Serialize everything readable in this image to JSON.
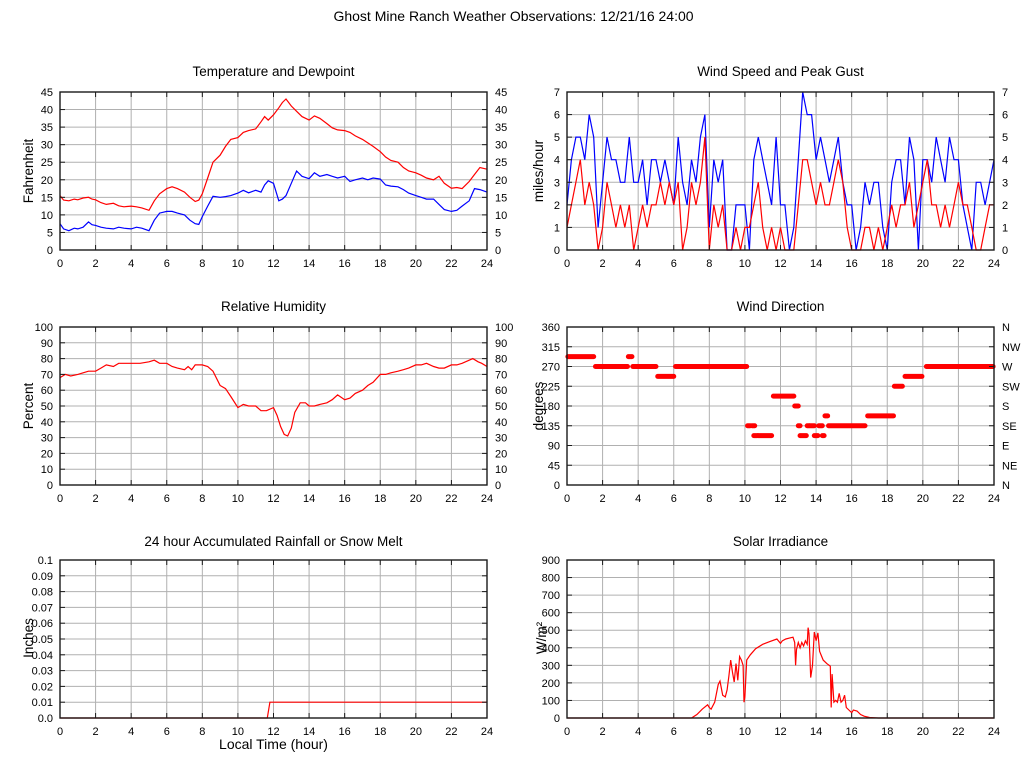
{
  "page_title": "Ghost Mine Ranch Weather Observations: 12/21/16 24:00",
  "colors": {
    "red_series": "#ff0000",
    "blue_series": "#0000ff",
    "grid_line": "#b0b0b0",
    "plot_border": "#1a1a1a",
    "background": "#ffffff",
    "text": "#000000"
  },
  "chart_data": [
    {
      "id": "temperature-dewpoint",
      "type": "line",
      "title": "Temperature and Dewpoint",
      "ylabel": "Fahrenheit",
      "xlabel": "",
      "xlim": [
        0,
        24
      ],
      "ylim": [
        0,
        45
      ],
      "xticks": [
        0,
        2,
        4,
        6,
        8,
        10,
        12,
        14,
        16,
        18,
        20,
        22,
        24
      ],
      "yticks": [
        0,
        5,
        10,
        15,
        20,
        25,
        30,
        35,
        40,
        45
      ],
      "right_labels": "same",
      "grid": true,
      "x": [
        0,
        0.2,
        0.5,
        0.8,
        1,
        1.3,
        1.6,
        1.8,
        2,
        2.3,
        2.6,
        3,
        3.3,
        3.6,
        4,
        4.3,
        4.6,
        5,
        5.3,
        5.6,
        6,
        6.3,
        6.6,
        7,
        7.3,
        7.6,
        7.8,
        8,
        8.3,
        8.6,
        9,
        9.3,
        9.6,
        10,
        10.3,
        10.6,
        11,
        11.3,
        11.5,
        11.7,
        12,
        12.3,
        12.5,
        12.7,
        13,
        13.3,
        13.6,
        14,
        14.3,
        14.6,
        15,
        15.3,
        15.6,
        16,
        16.3,
        16.6,
        17,
        17.3,
        17.6,
        18,
        18.3,
        18.6,
        19,
        19.3,
        19.6,
        20,
        20.3,
        20.6,
        21,
        21.3,
        21.6,
        22,
        22.3,
        22.6,
        23,
        23.3,
        23.6,
        24
      ],
      "series": [
        {
          "name": "temperature",
          "color": "#ff0000",
          "y": [
            15.5,
            14.2,
            14.0,
            14.5,
            14.3,
            14.8,
            15.0,
            14.5,
            14.3,
            13.5,
            13.0,
            13.3,
            12.6,
            12.3,
            12.5,
            12.3,
            12.0,
            11.3,
            14.0,
            16.0,
            17.5,
            18.0,
            17.5,
            16.5,
            15.0,
            13.8,
            14.2,
            16.0,
            20.5,
            25.0,
            27.0,
            29.5,
            31.5,
            32.0,
            33.5,
            34.0,
            34.5,
            36.5,
            38.0,
            37.0,
            38.5,
            40.5,
            42.0,
            43.0,
            41.0,
            39.5,
            38.0,
            37.0,
            38.2,
            37.5,
            36.0,
            34.8,
            34.2,
            34.0,
            33.5,
            32.5,
            31.5,
            30.5,
            29.5,
            28.0,
            26.5,
            25.5,
            25.0,
            23.5,
            22.5,
            22.0,
            21.3,
            20.5,
            20.0,
            21.0,
            19.0,
            17.6,
            17.8,
            17.5,
            19.5,
            21.5,
            23.5,
            23.0
          ]
        },
        {
          "name": "dewpoint",
          "color": "#0000ff",
          "y": [
            7.5,
            6.0,
            5.5,
            6.2,
            6.0,
            6.5,
            8.0,
            7.2,
            7.0,
            6.5,
            6.2,
            6.0,
            6.5,
            6.2,
            6.0,
            6.5,
            6.2,
            5.5,
            8.5,
            10.5,
            11.0,
            11.0,
            10.5,
            10.0,
            8.5,
            7.5,
            7.3,
            9.5,
            12.5,
            15.3,
            15.0,
            15.2,
            15.5,
            16.2,
            17.0,
            16.3,
            17.0,
            16.5,
            18.5,
            19.7,
            19.0,
            14.0,
            14.5,
            15.5,
            19.0,
            22.5,
            21.0,
            20.3,
            22.0,
            21.0,
            21.5,
            21.0,
            20.5,
            21.0,
            19.5,
            20.0,
            20.5,
            20.0,
            20.5,
            20.2,
            18.5,
            18.2,
            18.0,
            17.2,
            16.2,
            15.5,
            15.0,
            14.5,
            14.5,
            13.0,
            11.5,
            11.0,
            11.3,
            12.5,
            14.0,
            17.5,
            17.2,
            16.5
          ]
        }
      ]
    },
    {
      "id": "wind-speed-peak-gust",
      "type": "line",
      "title": "Wind Speed and Peak Gust",
      "ylabel": "miles/hour",
      "xlabel": "",
      "xlim": [
        0,
        24
      ],
      "ylim": [
        0,
        7
      ],
      "xticks": [
        0,
        2,
        4,
        6,
        8,
        10,
        12,
        14,
        16,
        18,
        20,
        22,
        24
      ],
      "yticks": [
        0,
        1,
        2,
        3,
        4,
        5,
        6,
        7
      ],
      "right_labels": "same",
      "grid": true,
      "x": [
        0,
        0.25,
        0.5,
        0.75,
        1,
        1.25,
        1.5,
        1.75,
        2,
        2.25,
        2.5,
        2.75,
        3,
        3.25,
        3.5,
        3.75,
        4,
        4.25,
        4.5,
        4.75,
        5,
        5.25,
        5.5,
        5.75,
        6,
        6.25,
        6.5,
        6.75,
        7,
        7.25,
        7.5,
        7.75,
        8,
        8.25,
        8.5,
        8.75,
        9,
        9.25,
        9.5,
        9.75,
        10,
        10.25,
        10.5,
        10.75,
        11,
        11.25,
        11.5,
        11.75,
        12,
        12.25,
        12.5,
        12.75,
        13,
        13.25,
        13.5,
        13.75,
        14,
        14.25,
        14.5,
        14.75,
        15,
        15.25,
        15.5,
        15.75,
        16,
        16.25,
        16.5,
        16.75,
        17,
        17.25,
        17.5,
        17.75,
        18,
        18.25,
        18.5,
        18.75,
        19,
        19.25,
        19.5,
        19.75,
        20,
        20.25,
        20.5,
        20.75,
        21,
        21.25,
        21.5,
        21.75,
        22,
        22.25,
        22.5,
        22.75,
        23,
        23.25,
        23.5,
        23.75,
        24
      ],
      "series": [
        {
          "name": "peak_gust",
          "color": "#0000ff",
          "y": [
            2,
            4,
            5,
            5,
            4,
            6,
            5,
            1,
            3,
            5,
            4,
            4,
            3,
            3,
            5,
            3,
            3,
            4,
            2,
            4,
            4,
            3,
            4,
            3,
            2,
            5,
            3,
            2,
            4,
            3,
            5,
            6,
            1,
            4,
            3,
            4,
            0,
            0,
            2,
            2,
            2,
            0,
            4,
            5,
            4,
            3,
            2,
            5,
            2,
            2,
            0,
            1,
            4,
            7,
            6,
            6,
            4,
            5,
            4,
            3,
            4,
            5,
            3,
            2,
            2,
            0,
            1,
            3,
            2,
            3,
            3,
            1,
            0,
            3,
            4,
            4,
            2,
            5,
            4,
            0,
            4,
            4,
            3,
            5,
            4,
            3,
            5,
            4,
            4,
            2,
            1,
            0,
            3,
            3,
            2,
            3,
            4
          ]
        },
        {
          "name": "wind_speed",
          "color": "#ff0000",
          "y": [
            1,
            2,
            3,
            4,
            2,
            3,
            2,
            0,
            1,
            3,
            2,
            1,
            2,
            1,
            2,
            0,
            1,
            2,
            1,
            2,
            2,
            3,
            2,
            3,
            2,
            3,
            0,
            1,
            3,
            2,
            3,
            5,
            0,
            2,
            1,
            2,
            0,
            0,
            1,
            0,
            1,
            1,
            2,
            3,
            1,
            0,
            1,
            0,
            1,
            0,
            0,
            0,
            2,
            4,
            4,
            3,
            2,
            3,
            2,
            2,
            3,
            4,
            3,
            1,
            0,
            0,
            0,
            1,
            1,
            0,
            1,
            0,
            1,
            2,
            1,
            2,
            2,
            3,
            1,
            2,
            3,
            4,
            2,
            2,
            1,
            2,
            1,
            2,
            3,
            2,
            2,
            1,
            0,
            0,
            1,
            2,
            2
          ]
        }
      ]
    },
    {
      "id": "relative-humidity",
      "type": "line",
      "title": "Relative Humidity",
      "ylabel": "Percent",
      "xlabel": "",
      "xlim": [
        0,
        24
      ],
      "ylim": [
        0,
        100
      ],
      "xticks": [
        0,
        2,
        4,
        6,
        8,
        10,
        12,
        14,
        16,
        18,
        20,
        22,
        24
      ],
      "yticks": [
        0,
        10,
        20,
        30,
        40,
        50,
        60,
        70,
        80,
        90,
        100
      ],
      "right_labels": "same",
      "grid": true,
      "x": [
        0,
        0.3,
        0.6,
        1,
        1.3,
        1.6,
        2,
        2.3,
        2.6,
        3,
        3.3,
        3.6,
        4,
        4.5,
        5,
        5.3,
        5.6,
        6,
        6.3,
        6.6,
        7,
        7.2,
        7.4,
        7.6,
        8,
        8.3,
        8.6,
        9,
        9.3,
        9.6,
        10,
        10.3,
        10.6,
        11,
        11.3,
        11.6,
        12,
        12.2,
        12.4,
        12.6,
        12.8,
        13,
        13.2,
        13.5,
        13.8,
        14,
        14.3,
        14.6,
        15,
        15.3,
        15.6,
        16,
        16.3,
        16.6,
        17,
        17.3,
        17.6,
        18,
        18.3,
        18.6,
        19,
        19.3,
        19.6,
        20,
        20.3,
        20.6,
        21,
        21.3,
        21.6,
        22,
        22.3,
        22.6,
        23,
        23.2,
        23.5,
        23.7,
        24
      ],
      "series": [
        {
          "name": "relative_humidity",
          "color": "#ff0000",
          "y": [
            68,
            70,
            69,
            70,
            71,
            72,
            72,
            74,
            76,
            75,
            77,
            77,
            77,
            77,
            78,
            79,
            77,
            77,
            75,
            74,
            73,
            75,
            73,
            76,
            76,
            75,
            72,
            63,
            61,
            56,
            49,
            51,
            50,
            50,
            47,
            47,
            49,
            44,
            37,
            32,
            31,
            36,
            46,
            52,
            52,
            50,
            50,
            51,
            52,
            54,
            57,
            54,
            55,
            58,
            60,
            63,
            65,
            70,
            70,
            71,
            72,
            73,
            74,
            76,
            76,
            77,
            75,
            74,
            74,
            76,
            76,
            77,
            79,
            80,
            78,
            77,
            75
          ]
        }
      ]
    },
    {
      "id": "wind-direction",
      "type": "segments",
      "title": "Wind Direction",
      "ylabel": "degrees",
      "xlabel": "",
      "xlim": [
        0,
        24
      ],
      "ylim": [
        0,
        360
      ],
      "xticks": [
        0,
        2,
        4,
        6,
        8,
        10,
        12,
        14,
        16,
        18,
        20,
        22,
        24
      ],
      "yticks": [
        0,
        45,
        90,
        135,
        180,
        225,
        270,
        315,
        360
      ],
      "right_labels": [
        "N",
        "NE",
        "E",
        "SE",
        "S",
        "SW",
        "W",
        "NW",
        "N"
      ],
      "grid": true,
      "color": "#ff0000",
      "segments": [
        [
          0.05,
          1.5,
          292.5
        ],
        [
          1.6,
          3.4,
          270
        ],
        [
          3.45,
          3.65,
          292.5
        ],
        [
          3.7,
          5.0,
          270
        ],
        [
          5.1,
          6.0,
          247.5
        ],
        [
          6.1,
          10.1,
          270
        ],
        [
          10.15,
          10.3,
          135
        ],
        [
          10.4,
          10.55,
          135
        ],
        [
          10.5,
          10.7,
          112.5
        ],
        [
          10.75,
          11.5,
          112.5
        ],
        [
          11.6,
          12.75,
          202.5
        ],
        [
          12.8,
          13.0,
          180
        ],
        [
          13.0,
          13.1,
          135
        ],
        [
          13.1,
          13.45,
          112.5
        ],
        [
          13.5,
          13.6,
          135
        ],
        [
          13.65,
          13.9,
          135
        ],
        [
          13.9,
          14.1,
          112.5
        ],
        [
          14.15,
          14.35,
          135
        ],
        [
          14.35,
          14.45,
          112.5
        ],
        [
          14.5,
          14.65,
          157.5
        ],
        [
          14.7,
          16.75,
          135
        ],
        [
          16.9,
          18.35,
          157.5
        ],
        [
          18.4,
          18.85,
          225
        ],
        [
          19.0,
          19.95,
          247.5
        ],
        [
          20.2,
          23.95,
          270
        ]
      ]
    },
    {
      "id": "accumulated-rainfall",
      "type": "line",
      "title": "24 hour Accumulated Rainfall or Snow Melt",
      "ylabel": "Inches",
      "xlabel": "Local Time (hour)",
      "xlim": [
        0,
        24
      ],
      "ylim": [
        0,
        0.1
      ],
      "xticks": [
        0,
        2,
        4,
        6,
        8,
        10,
        12,
        14,
        16,
        18,
        20,
        22,
        24
      ],
      "yticks": [
        0,
        0.01,
        0.02,
        0.03,
        0.04,
        0.05,
        0.06,
        0.07,
        0.08,
        0.09,
        0.1
      ],
      "ytick_labels": [
        "0.0",
        "0.01",
        "0.02",
        "0.03",
        "0.04",
        "0.05",
        "0.06",
        "0.07",
        "0.08",
        "0.09",
        "0.1"
      ],
      "right_labels": null,
      "grid": true,
      "x": [
        0,
        11.65,
        11.8,
        24
      ],
      "series": [
        {
          "name": "accumulated_rainfall",
          "color": "#ff0000",
          "y": [
            0,
            0,
            0.01,
            0.01
          ]
        }
      ]
    },
    {
      "id": "solar-irradiance",
      "type": "line",
      "title": "Solar Irradiance",
      "ylabel": "W/m²",
      "xlabel": "",
      "xlim": [
        0,
        24
      ],
      "ylim": [
        0,
        900
      ],
      "xticks": [
        0,
        2,
        4,
        6,
        8,
        10,
        12,
        14,
        16,
        18,
        20,
        22,
        24
      ],
      "yticks": [
        0,
        100,
        200,
        300,
        400,
        500,
        600,
        700,
        800,
        900
      ],
      "right_labels": null,
      "grid": true,
      "x": [
        0,
        7,
        7.3,
        7.6,
        7.9,
        8,
        8.1,
        8.3,
        8.5,
        8.6,
        8.75,
        8.9,
        9,
        9.1,
        9.2,
        9.3,
        9.4,
        9.5,
        9.6,
        9.7,
        9.8,
        9.9,
        9.95,
        10,
        10.1,
        10.3,
        10.6,
        11,
        11.4,
        11.8,
        12,
        12.1,
        12.3,
        12.5,
        12.7,
        12.8,
        12.85,
        12.9,
        13,
        13.1,
        13.2,
        13.3,
        13.4,
        13.5,
        13.55,
        13.6,
        13.7,
        13.8,
        13.9,
        14,
        14.1,
        14.2,
        14.4,
        14.6,
        14.8,
        14.85,
        14.9,
        15,
        15.1,
        15.2,
        15.3,
        15.4,
        15.5,
        15.6,
        15.7,
        15.9,
        16,
        16.1,
        16.3,
        16.5,
        16.7,
        17,
        17.5,
        24
      ],
      "series": [
        {
          "name": "solar_irradiance",
          "color": "#ff0000",
          "y": [
            0,
            0,
            20,
            50,
            75,
            60,
            50,
            90,
            190,
            210,
            130,
            120,
            160,
            240,
            330,
            260,
            205,
            310,
            215,
            350,
            330,
            300,
            90,
            120,
            330,
            360,
            395,
            420,
            435,
            450,
            425,
            440,
            450,
            455,
            460,
            430,
            300,
            390,
            430,
            400,
            430,
            410,
            440,
            420,
            515,
            480,
            230,
            300,
            490,
            440,
            485,
            380,
            330,
            310,
            295,
            60,
            250,
            90,
            100,
            90,
            140,
            90,
            100,
            130,
            60,
            40,
            30,
            45,
            40,
            20,
            10,
            3,
            0,
            0
          ]
        }
      ]
    }
  ]
}
